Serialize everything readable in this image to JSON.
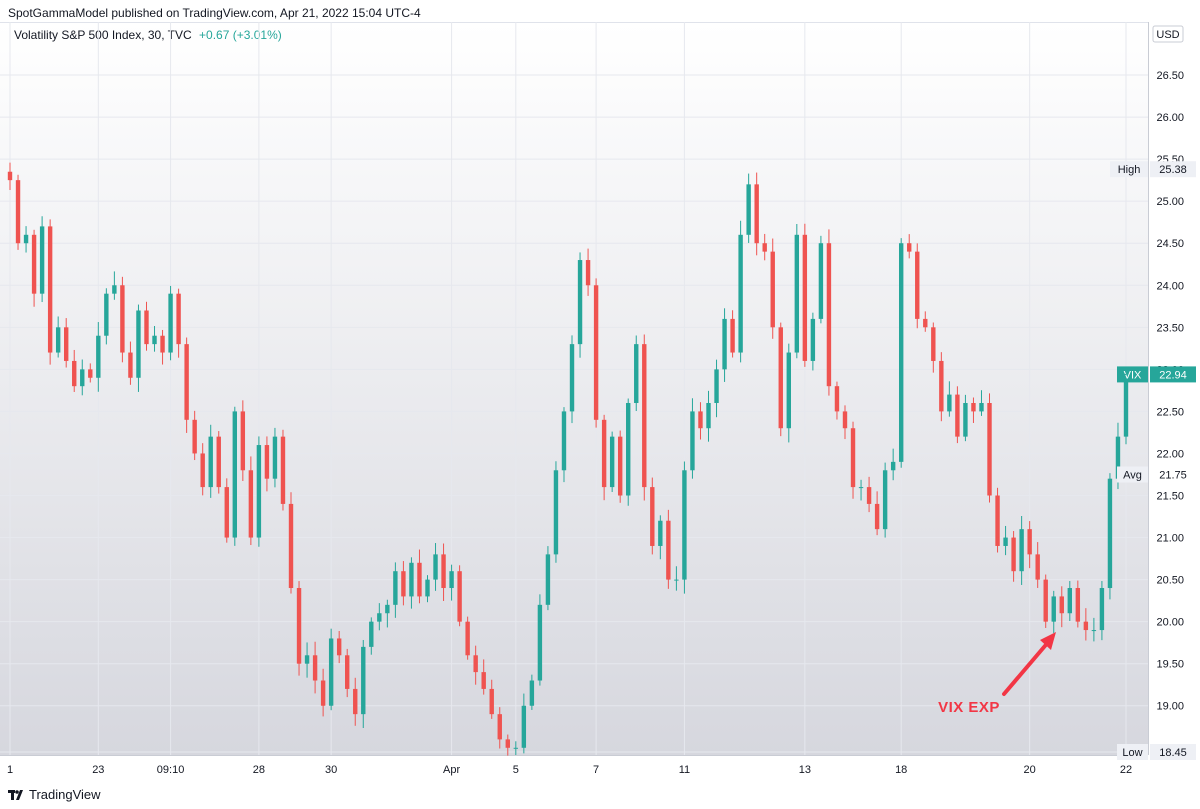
{
  "header": {
    "publisher": "SpotGammaModel published on TradingView.com, Apr 21, 2022 15:04 UTC-4"
  },
  "legend": {
    "symbol": "Volatility S&P 500 Index, 30, TVC",
    "change": "+0.67 (+3.01%)"
  },
  "footer": {
    "brand": "TradingView",
    "logo": "tradingview-logo"
  },
  "colors": {
    "up": "#26a69a",
    "down": "#ef5350",
    "annotation": "#f23645",
    "tag": "#26a69a"
  },
  "chart_data": {
    "type": "candlestick",
    "title": "Volatility S&P 500 Index, 30, TVC",
    "ylabel": "USD",
    "ylim": [
      18.45,
      26.75
    ],
    "y_ticks": [
      "26.50",
      "26.00",
      "25.50",
      "25.00",
      "24.50",
      "24.00",
      "23.50",
      "23.00",
      "22.50",
      "22.00",
      "21.50",
      "21.00",
      "20.50",
      "20.00",
      "19.50",
      "19.00",
      "18.45"
    ],
    "x_ticks": [
      "1",
      "23",
      "09:10",
      "28",
      "30",
      "Apr",
      "5",
      "7",
      "11",
      "13",
      "18",
      "20",
      "22"
    ],
    "tags": {
      "high": {
        "label": "High",
        "value": "25.38"
      },
      "last": {
        "label": "VIX",
        "value": "22.94"
      },
      "avg": {
        "label": "Avg",
        "value": "21.75"
      },
      "low": {
        "label": "Low",
        "value": "18.45"
      }
    },
    "annotation": "VIX EXP",
    "series": [
      {
        "values": [
          [
            "1",
            25.25
          ],
          [
            "",
            24.5
          ],
          [
            "",
            24.6
          ],
          [
            "",
            23.9
          ],
          [
            "",
            24.7
          ],
          [
            "",
            23.2
          ],
          [
            "",
            23.5
          ],
          [
            "",
            23.1
          ],
          [
            "",
            22.8
          ],
          [
            "",
            23.0
          ],
          [
            "",
            22.9
          ],
          [
            "23",
            23.4
          ],
          [
            "",
            23.9
          ],
          [
            "",
            24.0
          ],
          [
            "",
            23.2
          ],
          [
            "",
            22.9
          ],
          [
            "",
            23.7
          ],
          [
            "",
            23.3
          ],
          [
            "",
            23.4
          ],
          [
            "",
            23.2
          ],
          [
            "09:10",
            23.9
          ],
          [
            "",
            23.3
          ],
          [
            "",
            22.4
          ],
          [
            "",
            22.0
          ],
          [
            "",
            21.6
          ],
          [
            "",
            22.2
          ],
          [
            "",
            21.6
          ],
          [
            "",
            21.0
          ],
          [
            "",
            22.5
          ],
          [
            "",
            21.8
          ],
          [
            "",
            21.0
          ],
          [
            "28",
            22.1
          ],
          [
            "",
            21.7
          ],
          [
            "",
            22.2
          ],
          [
            "",
            21.4
          ],
          [
            "",
            20.4
          ],
          [
            "",
            19.5
          ],
          [
            "",
            19.6
          ],
          [
            "",
            19.3
          ],
          [
            "",
            19.0
          ],
          [
            "30",
            19.8
          ],
          [
            "",
            19.6
          ],
          [
            "",
            19.2
          ],
          [
            "",
            18.9
          ],
          [
            "",
            19.7
          ],
          [
            "",
            20.0
          ],
          [
            "",
            20.1
          ],
          [
            "",
            20.2
          ],
          [
            "",
            20.6
          ],
          [
            "",
            20.3
          ],
          [
            "",
            20.7
          ],
          [
            "",
            20.3
          ],
          [
            "",
            20.5
          ],
          [
            "",
            20.8
          ],
          [
            "",
            20.4
          ],
          [
            "Apr",
            20.6
          ],
          [
            "",
            20.0
          ],
          [
            "",
            19.6
          ],
          [
            "",
            19.4
          ],
          [
            "",
            19.2
          ],
          [
            "",
            18.9
          ],
          [
            "",
            18.6
          ],
          [
            "",
            18.5
          ],
          [
            "5",
            18.5
          ],
          [
            "",
            19.0
          ],
          [
            "",
            19.3
          ],
          [
            "",
            20.2
          ],
          [
            "",
            20.8
          ],
          [
            "",
            21.8
          ],
          [
            "",
            22.5
          ],
          [
            "",
            23.3
          ],
          [
            "",
            24.3
          ],
          [
            "",
            24.0
          ],
          [
            "7",
            22.4
          ],
          [
            "",
            21.6
          ],
          [
            "",
            22.2
          ],
          [
            "",
            21.5
          ],
          [
            "",
            22.6
          ],
          [
            "",
            23.3
          ],
          [
            "",
            21.6
          ],
          [
            "",
            20.9
          ],
          [
            "",
            21.2
          ],
          [
            "",
            20.5
          ],
          [
            "",
            20.5
          ],
          [
            "11",
            21.8
          ],
          [
            "",
            22.5
          ],
          [
            "",
            22.3
          ],
          [
            "",
            22.6
          ],
          [
            "",
            23.0
          ],
          [
            "",
            23.6
          ],
          [
            "",
            23.2
          ],
          [
            "",
            24.6
          ],
          [
            "",
            25.2
          ],
          [
            "",
            24.5
          ],
          [
            "",
            24.4
          ],
          [
            "",
            23.5
          ],
          [
            "",
            22.3
          ],
          [
            "",
            23.2
          ],
          [
            "",
            24.6
          ],
          [
            "13",
            23.1
          ],
          [
            "",
            23.6
          ],
          [
            "",
            24.5
          ],
          [
            "",
            22.8
          ],
          [
            "",
            22.5
          ],
          [
            "",
            22.3
          ],
          [
            "",
            21.6
          ],
          [
            "",
            21.6
          ],
          [
            "",
            21.4
          ],
          [
            "",
            21.1
          ],
          [
            "",
            21.8
          ],
          [
            "",
            21.9
          ],
          [
            "18",
            24.5
          ],
          [
            "",
            24.4
          ],
          [
            "",
            23.6
          ],
          [
            "",
            23.5
          ],
          [
            "",
            23.1
          ],
          [
            "",
            22.5
          ],
          [
            "",
            22.7
          ],
          [
            "",
            22.2
          ],
          [
            "",
            22.6
          ],
          [
            "",
            22.5
          ],
          [
            "",
            22.6
          ],
          [
            "",
            21.5
          ],
          [
            "",
            20.9
          ],
          [
            "",
            21.0
          ],
          [
            "",
            20.6
          ],
          [
            "",
            21.1
          ],
          [
            "20",
            20.8
          ],
          [
            "",
            20.5
          ],
          [
            "",
            20.0
          ],
          [
            "",
            20.3
          ],
          [
            "",
            20.1
          ],
          [
            "",
            20.4
          ],
          [
            "",
            20.0
          ],
          [
            "",
            19.9
          ],
          [
            "",
            19.9
          ],
          [
            "",
            20.4
          ],
          [
            "",
            21.7
          ],
          [
            "",
            22.2
          ],
          [
            "22",
            22.94
          ]
        ]
      }
    ]
  }
}
